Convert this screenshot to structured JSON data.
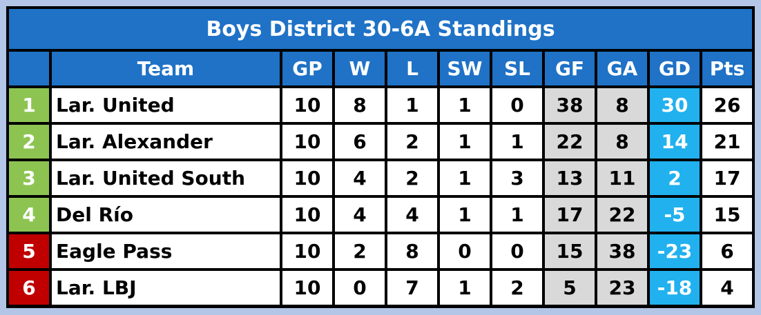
{
  "title": "Boys District 30-6A Standings",
  "table": {
    "columns": [
      "",
      "Team",
      "GP",
      "W",
      "L",
      "SW",
      "SL",
      "GF",
      "GA",
      "GD",
      "Pts"
    ],
    "rows": [
      [
        1,
        "Lar. United",
        10,
        8,
        1,
        1,
        0,
        38,
        8,
        30,
        26
      ],
      [
        2,
        "Lar. Alexander",
        10,
        6,
        2,
        1,
        1,
        22,
        8,
        14,
        21
      ],
      [
        3,
        "Lar. United South",
        10,
        4,
        2,
        1,
        3,
        13,
        11,
        2,
        17
      ],
      [
        4,
        "Del Río",
        10,
        4,
        4,
        1,
        1,
        17,
        22,
        -5,
        15
      ],
      [
        5,
        "Eagle Pass",
        10,
        2,
        8,
        0,
        0,
        15,
        38,
        -23,
        6
      ],
      [
        6,
        "Lar. LBJ",
        10,
        0,
        7,
        1,
        2,
        5,
        23,
        -18,
        4
      ]
    ]
  }
}
